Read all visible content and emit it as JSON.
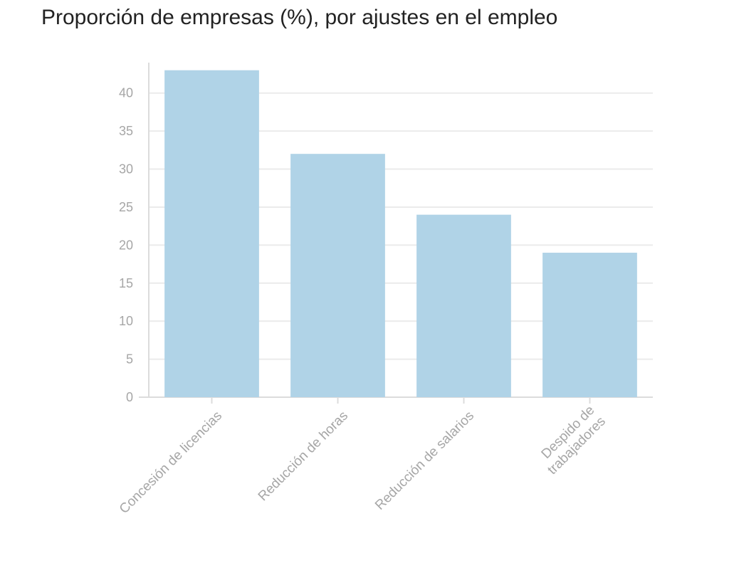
{
  "subtitle": "Proporción de empresas (%), por ajustes en el empleo",
  "chart_data": {
    "type": "bar",
    "title": "",
    "subtitle": "Proporción de empresas (%), por ajustes en el empleo",
    "categories": [
      [
        "Concesión de licencias"
      ],
      [
        "Reducción de horas"
      ],
      [
        "Reducción de salarios"
      ],
      [
        "Despido de",
        "trabajadores"
      ]
    ],
    "values": [
      43,
      32,
      24,
      19
    ],
    "yticks": [
      0,
      5,
      10,
      15,
      20,
      25,
      30,
      35,
      40
    ],
    "ylim": [
      0,
      44
    ],
    "xlabel": "",
    "ylabel": "",
    "grid": true,
    "colors": {
      "bar": "#b0d3e7",
      "grid": "#ebebeb",
      "axis": "#dcdcdc",
      "label": "#a6a6a6"
    }
  }
}
